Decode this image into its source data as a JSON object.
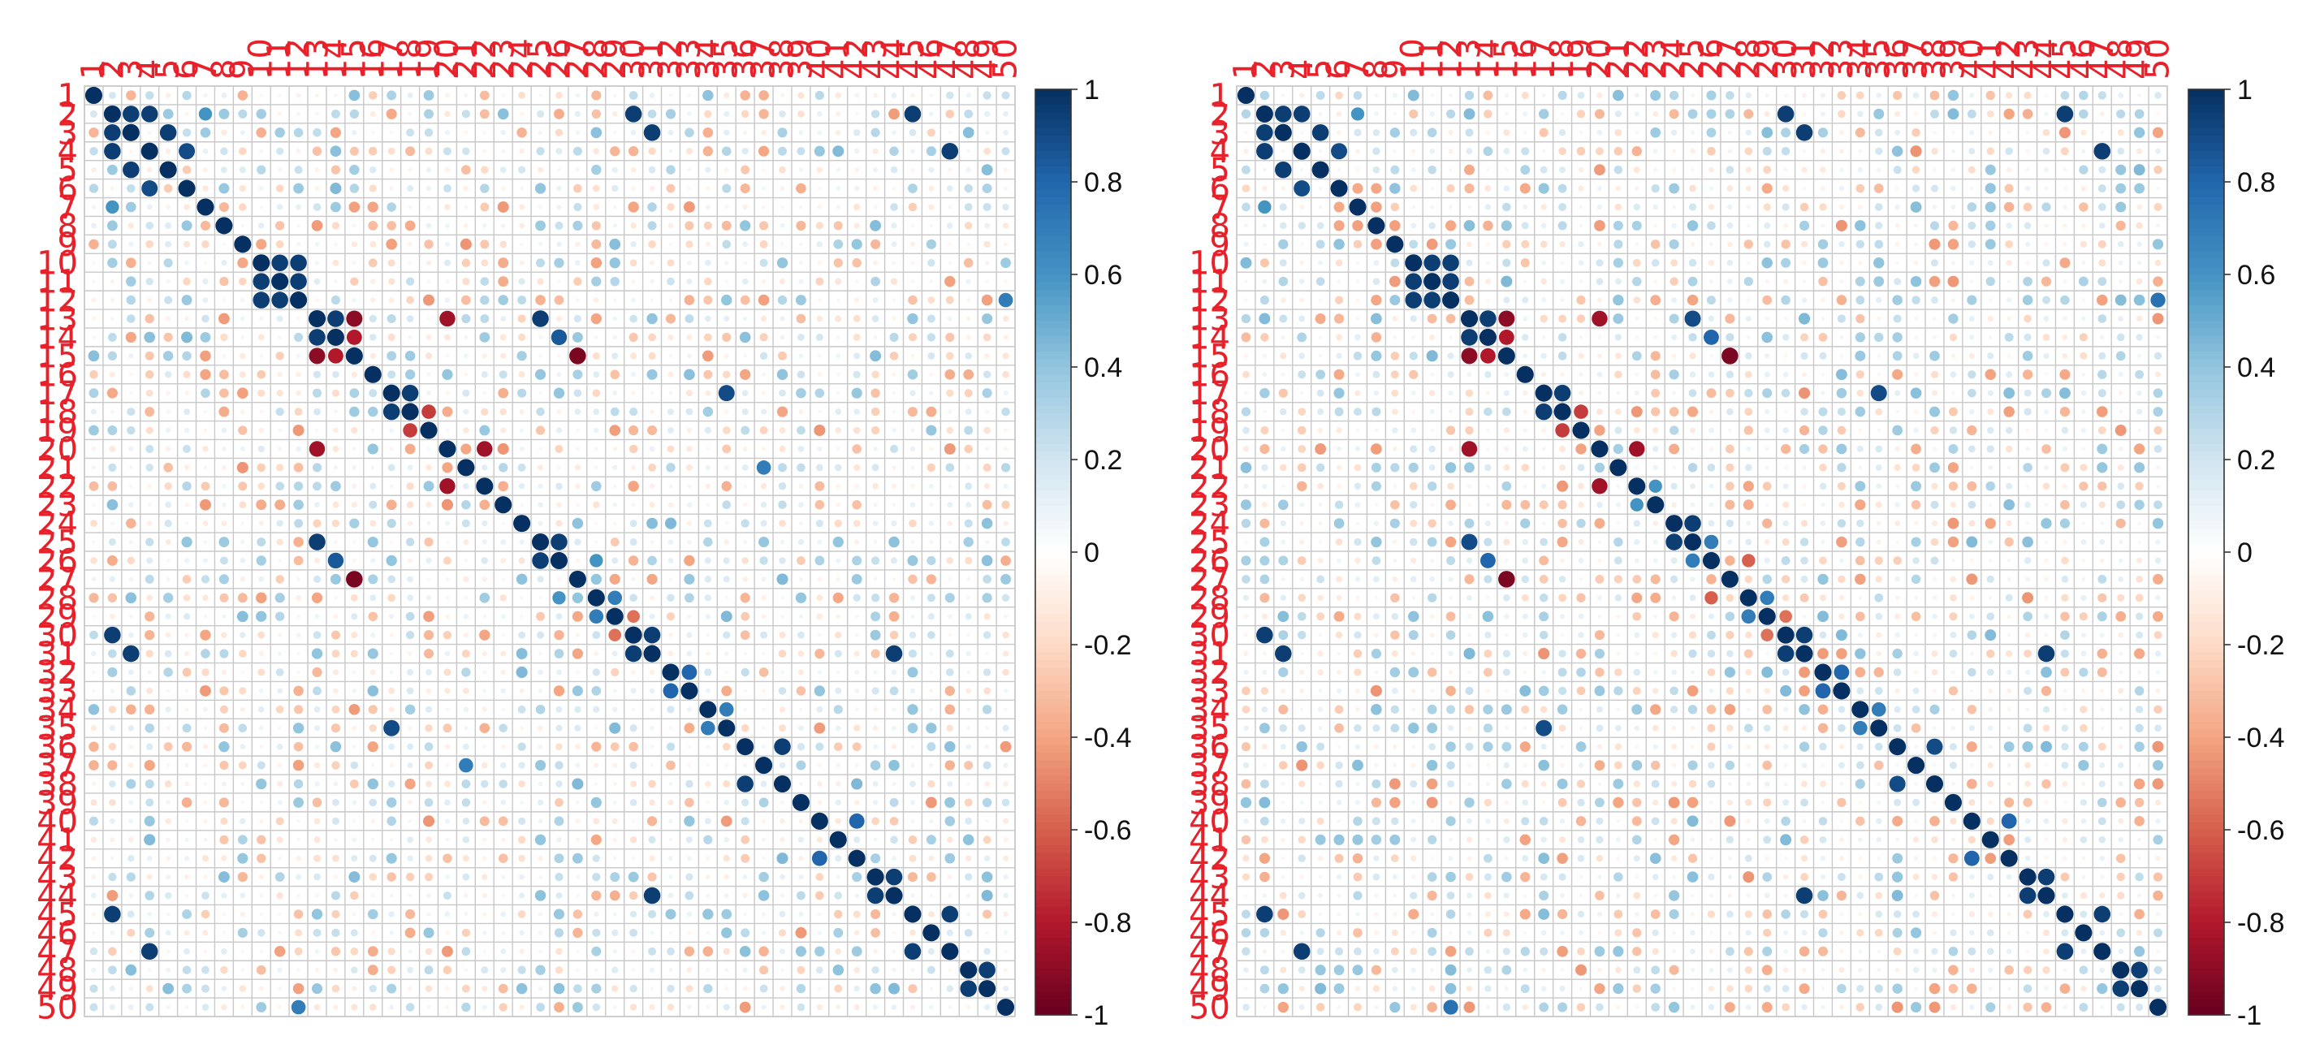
{
  "chart_data": [
    {
      "type": "heatmap",
      "method": "circle",
      "variables": [
        "1",
        "2",
        "3",
        "4",
        "5",
        "6",
        "7",
        "8",
        "9",
        "10",
        "11",
        "12",
        "13",
        "14",
        "15",
        "16",
        "17",
        "18",
        "19",
        "20",
        "21",
        "22",
        "23",
        "24",
        "25",
        "26",
        "27",
        "28",
        "29",
        "30",
        "31",
        "32",
        "33",
        "34",
        "35",
        "36",
        "37",
        "38",
        "39",
        "40",
        "41",
        "42",
        "43",
        "44",
        "45",
        "46",
        "47",
        "48",
        "49",
        "50"
      ],
      "value_range": [
        -1,
        1
      ],
      "colorbar": {
        "ticks": [
          1,
          0.8,
          0.6,
          0.4,
          0.2,
          0,
          -0.2,
          -0.4,
          -0.6,
          -0.8,
          -1
        ],
        "tick_labels": [
          "1",
          "0.8",
          "0.6",
          "0.4",
          "0.2",
          "0",
          "-0.2",
          "-0.4",
          "-0.6",
          "-0.8",
          "-1"
        ],
        "colors": [
          "#053061",
          "#2166ac",
          "#4393c3",
          "#92c5de",
          "#d1e5f0",
          "#ffffff",
          "#fddbc7",
          "#f4a582",
          "#d6604d",
          "#b2182b",
          "#67001f"
        ]
      },
      "notable_correlations": [
        {
          "vars": [
            "2",
            "3"
          ],
          "r": 0.95
        },
        {
          "vars": [
            "2",
            "4"
          ],
          "r": 0.95
        },
        {
          "vars": [
            "3",
            "5"
          ],
          "r": 0.95
        },
        {
          "vars": [
            "4",
            "6"
          ],
          "r": 0.9
        },
        {
          "vars": [
            "2",
            "7"
          ],
          "r": 0.6
        },
        {
          "vars": [
            "2",
            "30"
          ],
          "r": 0.95
        },
        {
          "vars": [
            "3",
            "31"
          ],
          "r": 0.95
        },
        {
          "vars": [
            "2",
            "45"
          ],
          "r": 0.95
        },
        {
          "vars": [
            "4",
            "47"
          ],
          "r": 0.95
        },
        {
          "vars": [
            "10",
            "11"
          ],
          "r": 0.95
        },
        {
          "vars": [
            "10",
            "12"
          ],
          "r": 0.95
        },
        {
          "vars": [
            "11",
            "12"
          ],
          "r": 0.95
        },
        {
          "vars": [
            "13",
            "14"
          ],
          "r": 0.95
        },
        {
          "vars": [
            "13",
            "15"
          ],
          "r": -0.9
        },
        {
          "vars": [
            "14",
            "15"
          ],
          "r": -0.8
        },
        {
          "vars": [
            "13",
            "20"
          ],
          "r": -0.85
        },
        {
          "vars": [
            "13",
            "25"
          ],
          "r": 0.95
        },
        {
          "vars": [
            "14",
            "26"
          ],
          "r": 0.85
        },
        {
          "vars": [
            "15",
            "27"
          ],
          "r": -0.95
        },
        {
          "vars": [
            "17",
            "18"
          ],
          "r": 0.95
        },
        {
          "vars": [
            "18",
            "19"
          ],
          "r": -0.7
        },
        {
          "vars": [
            "17",
            "35"
          ],
          "r": 0.9
        },
        {
          "vars": [
            "20",
            "22"
          ],
          "r": -0.85
        },
        {
          "vars": [
            "21",
            "37"
          ],
          "r": 0.7
        },
        {
          "vars": [
            "25",
            "26"
          ],
          "r": 0.95
        },
        {
          "vars": [
            "26",
            "28"
          ],
          "r": 0.6
        },
        {
          "vars": [
            "28",
            "29"
          ],
          "r": 0.7
        },
        {
          "vars": [
            "29",
            "30"
          ],
          "r": -0.55
        },
        {
          "vars": [
            "30",
            "31"
          ],
          "r": 0.95
        },
        {
          "vars": [
            "31",
            "44"
          ],
          "r": 0.95
        },
        {
          "vars": [
            "32",
            "33"
          ],
          "r": 0.8
        },
        {
          "vars": [
            "34",
            "35"
          ],
          "r": 0.7
        },
        {
          "vars": [
            "36",
            "38"
          ],
          "r": 0.95
        },
        {
          "vars": [
            "40",
            "42"
          ],
          "r": 0.8
        },
        {
          "vars": [
            "43",
            "44"
          ],
          "r": 0.95
        },
        {
          "vars": [
            "45",
            "47"
          ],
          "r": 0.95
        },
        {
          "vars": [
            "48",
            "49"
          ],
          "r": 0.95
        },
        {
          "vars": [
            "12",
            "50"
          ],
          "r": 0.7
        }
      ]
    },
    {
      "type": "heatmap",
      "method": "circle",
      "variables": [
        "1",
        "2",
        "3",
        "4",
        "5",
        "6",
        "7",
        "8",
        "9",
        "10",
        "11",
        "12",
        "13",
        "14",
        "15",
        "16",
        "17",
        "18",
        "19",
        "20",
        "21",
        "22",
        "23",
        "24",
        "25",
        "26",
        "27",
        "28",
        "29",
        "30",
        "31",
        "32",
        "33",
        "34",
        "35",
        "36",
        "37",
        "38",
        "39",
        "40",
        "41",
        "42",
        "43",
        "44",
        "45",
        "46",
        "47",
        "48",
        "49",
        "50"
      ],
      "value_range": [
        -1,
        1
      ],
      "colorbar": {
        "ticks": [
          1,
          0.8,
          0.6,
          0.4,
          0.2,
          0,
          -0.2,
          -0.4,
          -0.6,
          -0.8,
          -1
        ],
        "tick_labels": [
          "1",
          "0.8",
          "0.6",
          "0.4",
          "0.2",
          "0",
          "-0.2",
          "-0.4",
          "-0.6",
          "-0.8",
          "-1"
        ],
        "colors": [
          "#053061",
          "#2166ac",
          "#4393c3",
          "#92c5de",
          "#d1e5f0",
          "#ffffff",
          "#fddbc7",
          "#f4a582",
          "#d6604d",
          "#b2182b",
          "#67001f"
        ]
      },
      "notable_correlations": [
        {
          "vars": [
            "2",
            "3"
          ],
          "r": 0.95
        },
        {
          "vars": [
            "2",
            "4"
          ],
          "r": 0.95
        },
        {
          "vars": [
            "3",
            "5"
          ],
          "r": 0.95
        },
        {
          "vars": [
            "4",
            "6"
          ],
          "r": 0.9
        },
        {
          "vars": [
            "2",
            "7"
          ],
          "r": 0.6
        },
        {
          "vars": [
            "2",
            "30"
          ],
          "r": 0.95
        },
        {
          "vars": [
            "3",
            "31"
          ],
          "r": 0.95
        },
        {
          "vars": [
            "2",
            "45"
          ],
          "r": 0.95
        },
        {
          "vars": [
            "4",
            "47"
          ],
          "r": 0.95
        },
        {
          "vars": [
            "10",
            "11"
          ],
          "r": 0.95
        },
        {
          "vars": [
            "10",
            "12"
          ],
          "r": 0.95
        },
        {
          "vars": [
            "11",
            "12"
          ],
          "r": 0.95
        },
        {
          "vars": [
            "13",
            "14"
          ],
          "r": 0.95
        },
        {
          "vars": [
            "13",
            "15"
          ],
          "r": -0.9
        },
        {
          "vars": [
            "14",
            "15"
          ],
          "r": -0.8
        },
        {
          "vars": [
            "13",
            "20"
          ],
          "r": -0.85
        },
        {
          "vars": [
            "13",
            "25"
          ],
          "r": 0.9
        },
        {
          "vars": [
            "14",
            "26"
          ],
          "r": 0.8
        },
        {
          "vars": [
            "15",
            "27"
          ],
          "r": -0.95
        },
        {
          "vars": [
            "17",
            "18"
          ],
          "r": 0.95
        },
        {
          "vars": [
            "18",
            "19"
          ],
          "r": -0.7
        },
        {
          "vars": [
            "17",
            "35"
          ],
          "r": 0.9
        },
        {
          "vars": [
            "20",
            "22"
          ],
          "r": -0.85
        },
        {
          "vars": [
            "22",
            "23"
          ],
          "r": 0.6
        },
        {
          "vars": [
            "24",
            "25"
          ],
          "r": 0.95
        },
        {
          "vars": [
            "25",
            "26"
          ],
          "r": 0.7
        },
        {
          "vars": [
            "26",
            "28"
          ],
          "r": -0.6
        },
        {
          "vars": [
            "28",
            "29"
          ],
          "r": 0.7
        },
        {
          "vars": [
            "29",
            "30"
          ],
          "r": -0.55
        },
        {
          "vars": [
            "30",
            "31"
          ],
          "r": 0.95
        },
        {
          "vars": [
            "31",
            "44"
          ],
          "r": 0.95
        },
        {
          "vars": [
            "32",
            "33"
          ],
          "r": 0.8
        },
        {
          "vars": [
            "34",
            "35"
          ],
          "r": 0.7
        },
        {
          "vars": [
            "36",
            "38"
          ],
          "r": 0.9
        },
        {
          "vars": [
            "40",
            "42"
          ],
          "r": 0.8
        },
        {
          "vars": [
            "43",
            "44"
          ],
          "r": 0.95
        },
        {
          "vars": [
            "45",
            "47"
          ],
          "r": 0.95
        },
        {
          "vars": [
            "48",
            "49"
          ],
          "r": 0.95
        },
        {
          "vars": [
            "12",
            "50"
          ],
          "r": 0.75
        }
      ]
    }
  ]
}
